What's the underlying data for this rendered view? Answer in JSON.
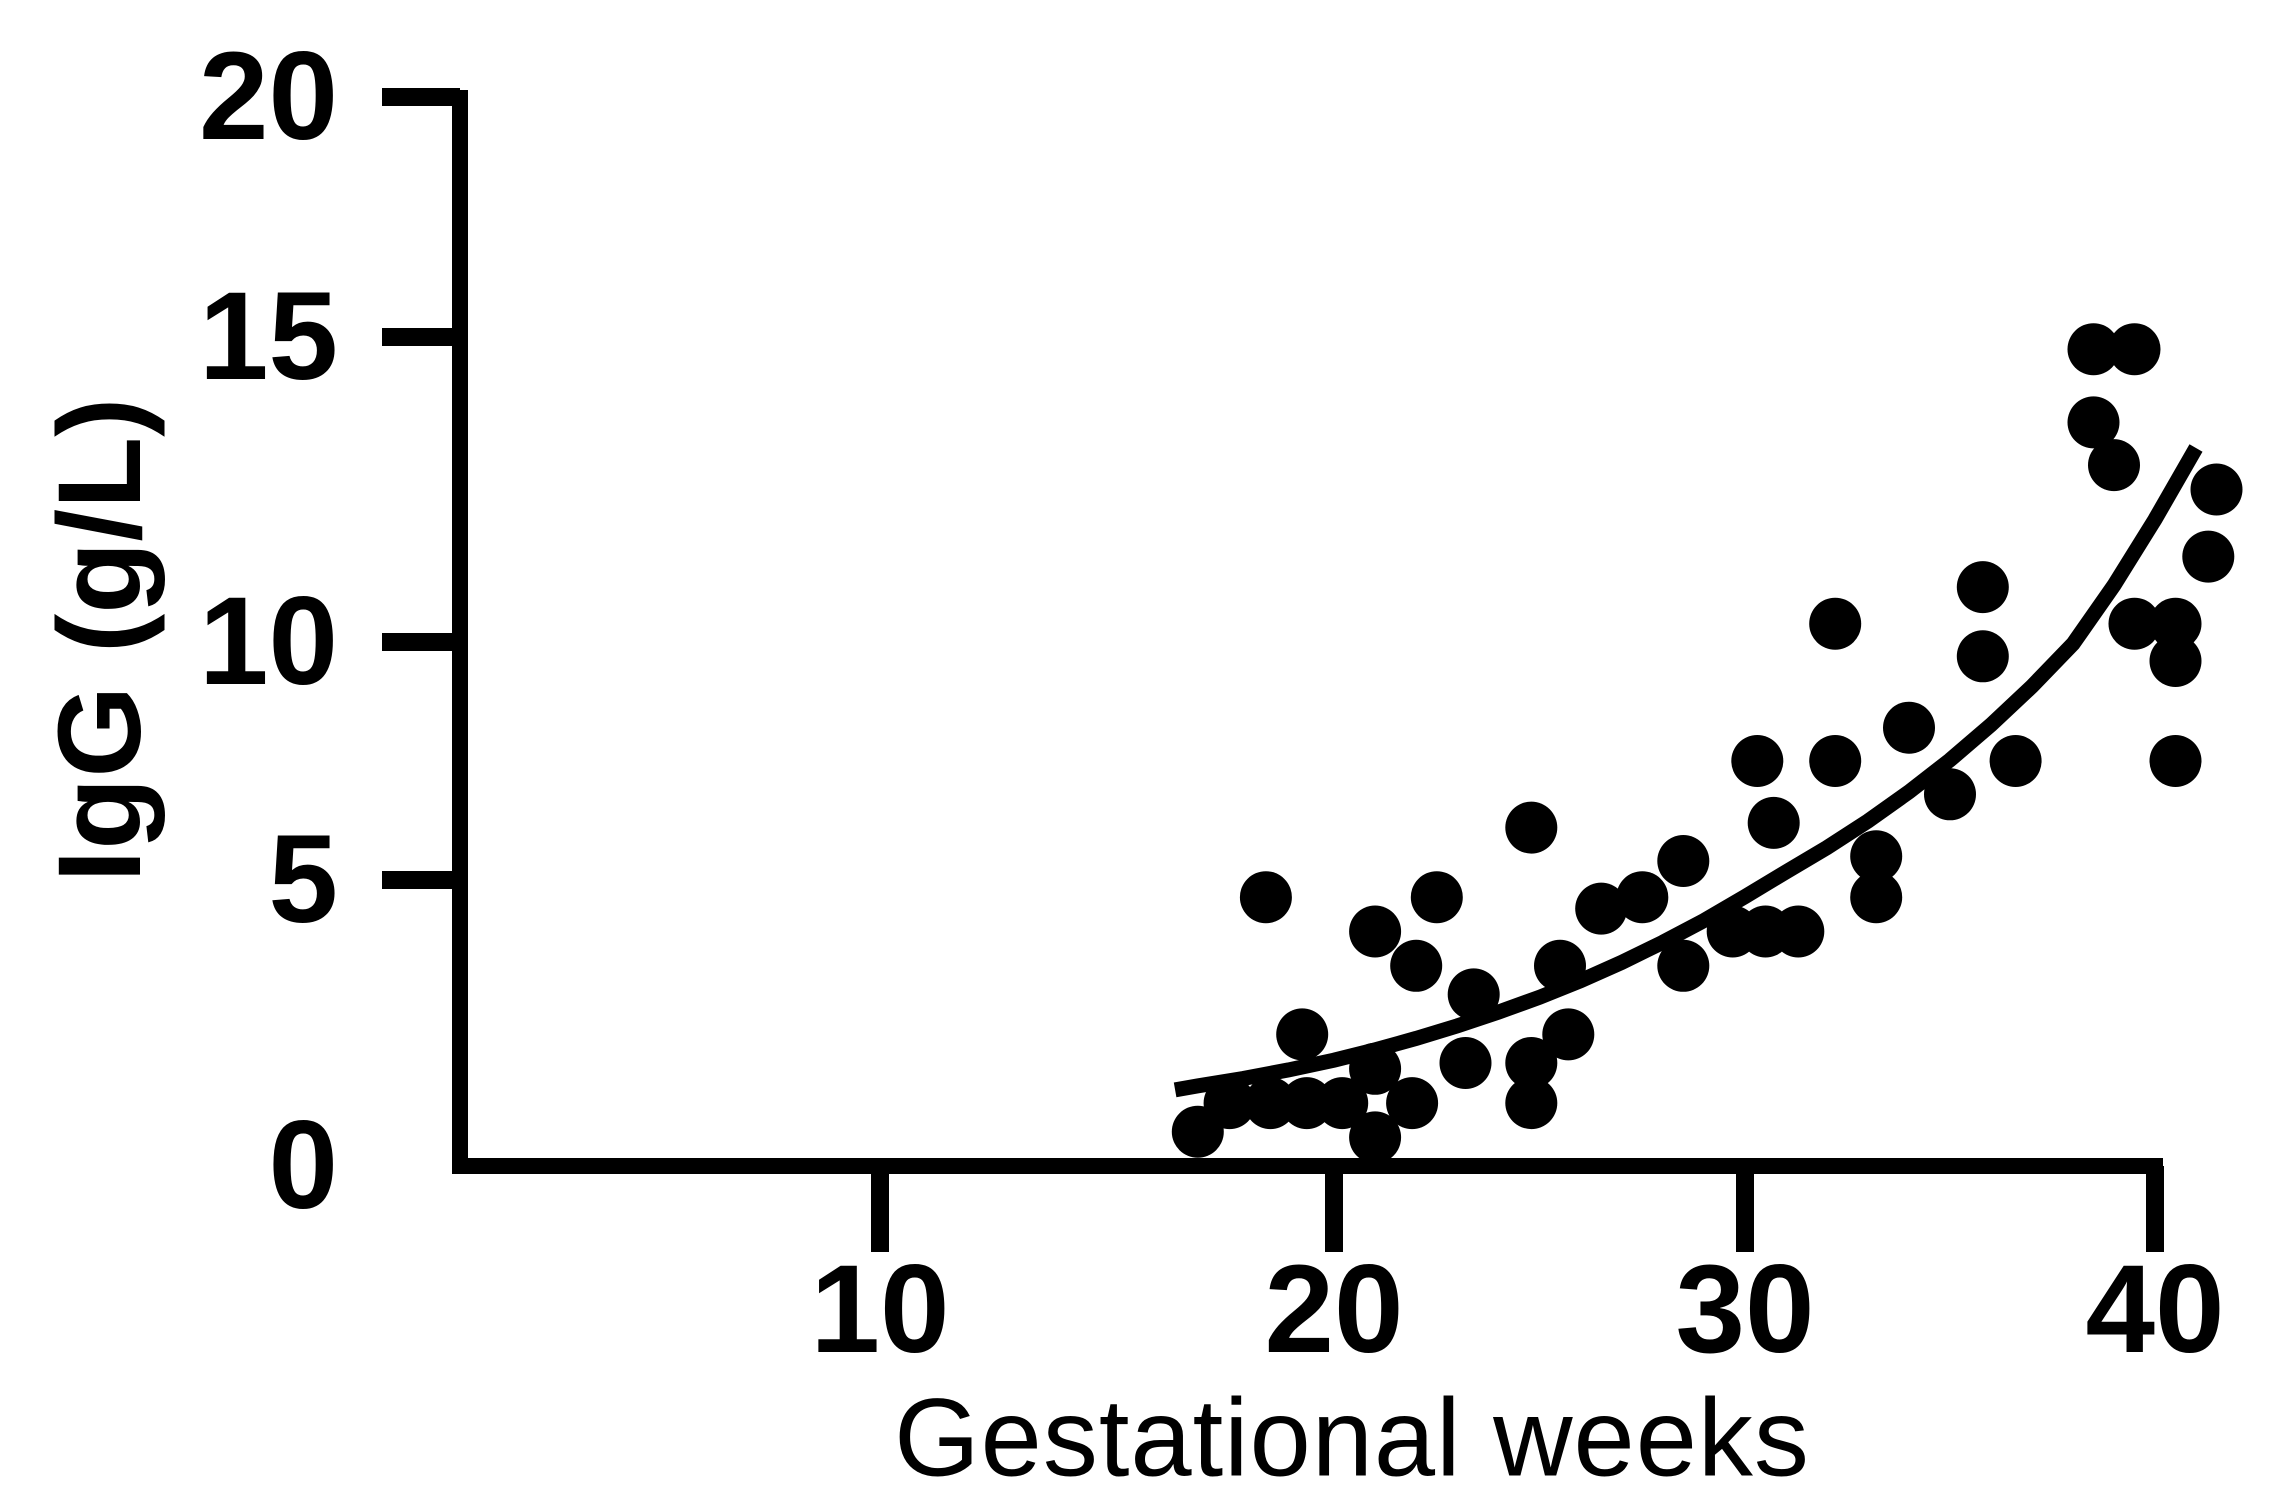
{
  "figure": {
    "background": "#ffffff",
    "ink_color": "#000000"
  },
  "chart_data": {
    "type": "scatter",
    "title": "",
    "xlabel": "Gestational weeks",
    "ylabel": "IgG (g/L)",
    "xlim": [
      0,
      42
    ],
    "ylim": [
      0,
      20
    ],
    "grid": false,
    "legend": "none",
    "x_ticks": [
      10,
      20,
      30,
      40
    ],
    "y_ticks": [
      0,
      5,
      10,
      15,
      20
    ],
    "marker": {
      "shape": "circle",
      "color": "#000000"
    },
    "points": [
      [
        17.0,
        0.6
      ],
      [
        17.7,
        1.1
      ],
      [
        18.6,
        1.1
      ],
      [
        19.4,
        1.1
      ],
      [
        20.2,
        1.1
      ],
      [
        21.9,
        1.1
      ],
      [
        21.0,
        0.5
      ],
      [
        21.0,
        1.7
      ],
      [
        19.3,
        2.3
      ],
      [
        18.5,
        4.7
      ],
      [
        21.0,
        4.1
      ],
      [
        22.0,
        3.5
      ],
      [
        22.5,
        4.7
      ],
      [
        23.2,
        1.8
      ],
      [
        23.4,
        3.0
      ],
      [
        24.8,
        1.8
      ],
      [
        24.8,
        1.1
      ],
      [
        25.7,
        2.3
      ],
      [
        25.5,
        3.5
      ],
      [
        24.8,
        6.1
      ],
      [
        26.5,
        4.5
      ],
      [
        27.5,
        4.7
      ],
      [
        28.5,
        5.4
      ],
      [
        28.5,
        3.5
      ],
      [
        29.7,
        4.1
      ],
      [
        30.5,
        4.1
      ],
      [
        31.3,
        4.1
      ],
      [
        30.7,
        6.2
      ],
      [
        30.3,
        7.5
      ],
      [
        32.2,
        7.5
      ],
      [
        32.2,
        10.3
      ],
      [
        33.2,
        5.5
      ],
      [
        33.2,
        4.7
      ],
      [
        34.0,
        8.2
      ],
      [
        35.0,
        6.8
      ],
      [
        35.8,
        10.9
      ],
      [
        35.8,
        9.7
      ],
      [
        36.6,
        7.5
      ],
      [
        38.5,
        14.8
      ],
      [
        39.5,
        14.8
      ],
      [
        38.5,
        13.6
      ],
      [
        39.0,
        12.9
      ],
      [
        39.5,
        10.3
      ],
      [
        40.5,
        10.3
      ],
      [
        40.5,
        9.6
      ],
      [
        40.5,
        7.5
      ],
      [
        41.3,
        11.4
      ],
      [
        41.5,
        12.5
      ]
    ],
    "trend_line": {
      "type": "exponential-fit",
      "points": [
        [
          16.5,
          1.33
        ],
        [
          17,
          1.4
        ],
        [
          18,
          1.53
        ],
        [
          19,
          1.68
        ],
        [
          20,
          1.85
        ],
        [
          21,
          2.03
        ],
        [
          22,
          2.23
        ],
        [
          23,
          2.45
        ],
        [
          24,
          2.69
        ],
        [
          25,
          2.95
        ],
        [
          26,
          3.24
        ],
        [
          27,
          3.56
        ],
        [
          28,
          3.91
        ],
        [
          29,
          4.29
        ],
        [
          30,
          4.71
        ],
        [
          31,
          5.17
        ],
        [
          32,
          5.68
        ],
        [
          33,
          6.24
        ],
        [
          34,
          6.85
        ],
        [
          35,
          7.52
        ],
        [
          36,
          8.26
        ],
        [
          37,
          9.07
        ],
        [
          38,
          9.96
        ],
        [
          39,
          10.93
        ],
        [
          40,
          12.01
        ],
        [
          41,
          13.18
        ]
      ]
    }
  }
}
